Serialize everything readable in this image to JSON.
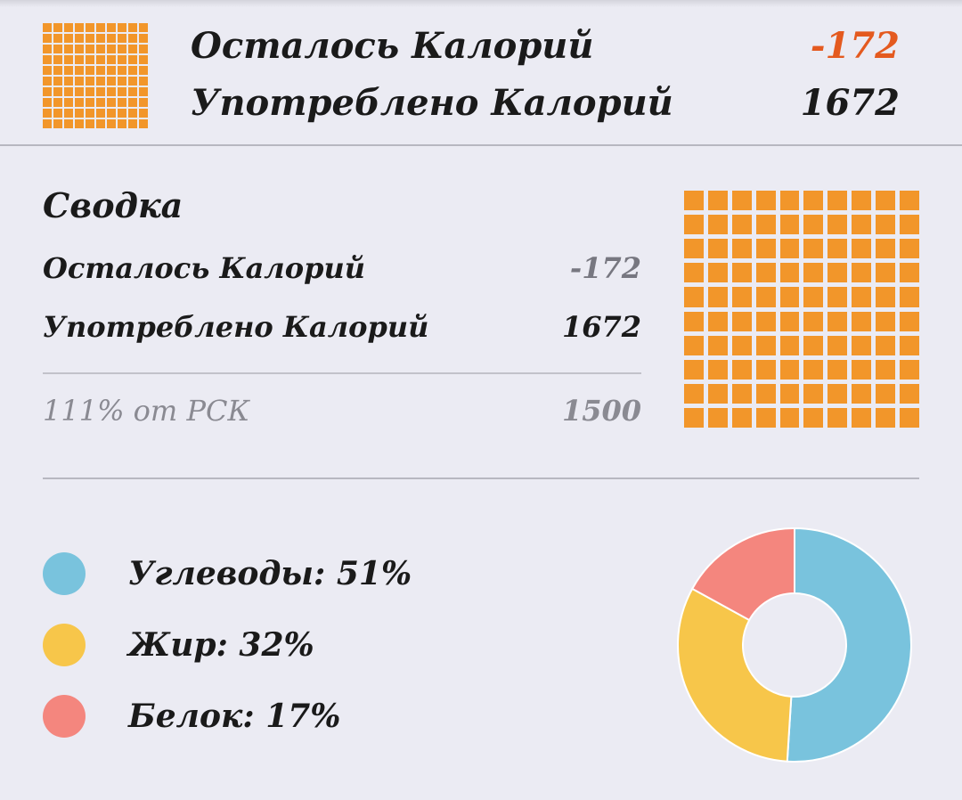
{
  "header": {
    "remaining_label": "Осталось Калорий",
    "remaining_value": "-172",
    "consumed_label": "Употреблено Калорий",
    "consumed_value": "1672"
  },
  "summary": {
    "title": "Сводка",
    "remaining_label": "Осталось Калорий",
    "remaining_value": "-172",
    "consumed_label": "Употреблено Калорий",
    "consumed_value": "1672",
    "rsk_label": "111% от РСК",
    "rsk_value": "1500"
  },
  "macros": [
    {
      "label": "Углеводы: 51%",
      "percent": 51,
      "color": "#79c3dd"
    },
    {
      "label": "Жир: 32%",
      "percent": 32,
      "color": "#f7c64a"
    },
    {
      "label": "Белок: 17%",
      "percent": 17,
      "color": "#f4867e"
    }
  ],
  "colors": {
    "accent": "#f2962a",
    "negative": "#e45a1f",
    "background": "#ebebf3"
  },
  "icons": {
    "header_grid": "calorie-grid-icon",
    "summary_grid": "calorie-grid-icon"
  }
}
